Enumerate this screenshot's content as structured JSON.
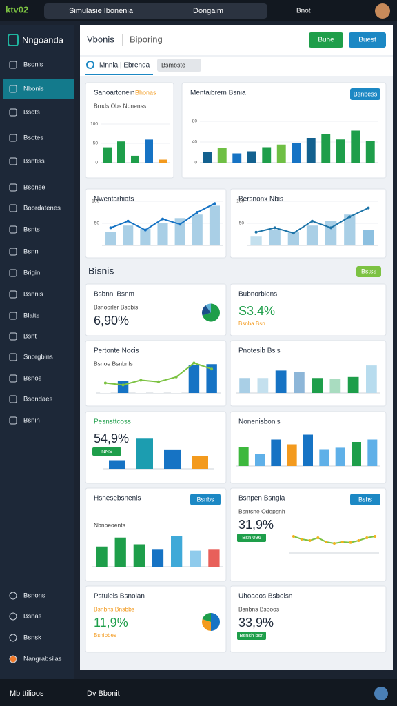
{
  "browser": {
    "logo": "ktv02",
    "tab": "Simulasie Ibonenia",
    "search": "Dongaim",
    "user": "Bnot"
  },
  "sidebar": {
    "title": "Nngoanda",
    "items": [
      "Bsonis",
      "Nbonis",
      "Bsots",
      "Bsotes",
      "Bsntiss",
      "Bsonse",
      "Boordatenes",
      "Bsnts",
      "Bsnn",
      "Brigin",
      "Bsnnis",
      "Blaits",
      "Bsnt",
      "Snorgbins",
      "Bsnos",
      "Bsondaes",
      "Bsnin"
    ],
    "footer": [
      "Bsnons",
      "Bsnas",
      "Bsnsk",
      "Nangrabsilas"
    ]
  },
  "header": {
    "title": "Vbonis",
    "subtitle": "Biporing",
    "button_1": "Buhe",
    "button_2": "Buest"
  },
  "tabs": {
    "active": "Mnnla | Ebrenda",
    "dropdown": "Bsmbste"
  },
  "section": {
    "title": "Bisnis",
    "button": "Bstss"
  },
  "widgets": [
    {
      "title": "Sanoartonein",
      "badge": "Bhonas",
      "sub": "Brnds Obs Nbnenss",
      "bars": [
        40,
        55,
        18,
        60,
        8
      ],
      "colors": [
        "#1e9e4a",
        "#1e9e4a",
        "#1e9e4a",
        "#1673c4",
        "#f39a1e"
      ],
      "ylim": [
        0,
        100
      ],
      "yticks": [
        0,
        50,
        100
      ]
    },
    {
      "title": "Mentaibrem Bsnia",
      "button": "Bsnbess",
      "bars": [
        20,
        28,
        18,
        22,
        30,
        35,
        38,
        48,
        55,
        45,
        62,
        42
      ],
      "colors": [
        "#13618f",
        "#6fbf44",
        "#1673c4",
        "#13618f",
        "#1e9e4a",
        "#6fbf44",
        "#1673c4",
        "#13618f",
        "#1e9e4a",
        "#1e9e4a",
        "#1e9e4a",
        "#1e9e4a"
      ],
      "ylim": [
        0,
        80
      ],
      "yticks": [
        0,
        40,
        80
      ]
    },
    {
      "title": "Nwentarhiats",
      "bars": [
        30,
        45,
        38,
        50,
        62,
        70,
        90
      ],
      "colors": [
        "#a9cfe6",
        "#a9cfe6",
        "#a9cfe6",
        "#a9cfe6",
        "#a9cfe6",
        "#a9cfe6",
        "#a9cfe6"
      ],
      "line": [
        40,
        55,
        35,
        60,
        48,
        75,
        95
      ],
      "line_color": "#1673c4",
      "ylim": [
        0,
        100
      ],
      "yticks": [
        50,
        100
      ]
    },
    {
      "title": "Bersnonx Nbis",
      "bars": [
        20,
        35,
        30,
        45,
        55,
        70,
        35
      ],
      "colors": [
        "#c4e0ee",
        "#a9cfe6",
        "#a9cfe6",
        "#a9cfe6",
        "#a9cfe6",
        "#a9cfe6",
        "#8dc0e0"
      ],
      "line": [
        30,
        40,
        28,
        55,
        40,
        65,
        85
      ],
      "line_color": "#1d74a8",
      "ylim": [
        0,
        100
      ],
      "yticks": [
        50,
        100
      ]
    },
    {
      "title": "Bsbnnl Bsnm",
      "sub": "Bsnoorler Bsobis",
      "kpi": "6,90%",
      "donut": [
        70,
        20,
        10
      ],
      "donut_colors": [
        "#1e9e4a",
        "#1b4e8a",
        "#5fb0d8"
      ]
    },
    {
      "title": "Bubnorbions",
      "kpi": "S3.4%",
      "kpi_color": "#1e9e4a",
      "sub2": "Bsnba Bsn"
    },
    {
      "title": "Pertonte Nocis",
      "sub": "Bsnoe Bsnbnls",
      "bars": [
        10,
        30,
        12,
        15,
        20,
        70,
        72
      ],
      "colors": [
        "#ffffff",
        "#1673c4",
        "#ffffff",
        "#ffffff",
        "#ffffff",
        "#1673c4",
        "#1673c4"
      ],
      "line": [
        25,
        20,
        32,
        28,
        40,
        75,
        60
      ],
      "line_color": "#7cc242",
      "ylim": [
        0,
        100
      ]
    },
    {
      "title": "Pnotesib Bsls",
      "bars": [
        30,
        30,
        45,
        42,
        30,
        28,
        32,
        55
      ],
      "colors": [
        "#a9cfe6",
        "#c4e0ee",
        "#1673c4",
        "#8db6d8",
        "#1e9e4a",
        "#a9dcc0",
        "#1e9e4a",
        "#b8dcee"
      ],
      "ylim": [
        0,
        80
      ]
    },
    {
      "title": "Pesnsttcoss",
      "title_color": "#1e9e4a",
      "kpi": "54,9%",
      "tag": "NNS",
      "bars": [
        20,
        70,
        45,
        30
      ],
      "colors": [
        "#1673c4",
        "#1c9db0",
        "#1673c4",
        "#f39a1e"
      ],
      "ylim": [
        0,
        80
      ]
    },
    {
      "title": "Nonenisbonis",
      "bars": [
        40,
        25,
        55,
        45,
        65,
        35,
        38,
        50,
        55
      ],
      "colors": [
        "#3db83d",
        "#5fb0e8",
        "#1673c4",
        "#f39a1e",
        "#1673c4",
        "#5fb0e8",
        "#5fb0e8",
        "#1e9e4a",
        "#5fb0e8"
      ],
      "ylim": [
        0,
        80
      ]
    },
    {
      "title": "Hsnesebsnenis",
      "button": "Bsnbs",
      "sub": "Nbnoeoents",
      "bars": [
        45,
        65,
        50,
        38,
        68,
        36,
        38
      ],
      "colors": [
        "#1e9e4a",
        "#1e9e4a",
        "#1e9e4a",
        "#1673c4",
        "#3fa9d8",
        "#8fcbec",
        "#e8605a"
      ],
      "ylim": [
        0,
        80
      ]
    },
    {
      "title": "Bsnpen Bsngia",
      "button": "Bshs",
      "sub": "Bsntsne Odepsnh",
      "kpi": "31,9%",
      "tag": "Bsn 096",
      "line": [
        60,
        50,
        45,
        55,
        40,
        35,
        40,
        38,
        45,
        55,
        60
      ],
      "line_color": "#7cc242",
      "ylim": [
        0,
        80
      ]
    },
    {
      "title": "Pstulels Bsnoian",
      "sub": "Bsnbns Bnsbbs",
      "sub_color": "#f39a1e",
      "kpi": "11,9%",
      "kpi_color": "#1e9e4a",
      "sub2": "Bsnibbes",
      "donut": [
        50,
        30,
        20
      ],
      "donut_colors": [
        "#1673c4",
        "#f39a1e",
        "#1e9e4a"
      ]
    },
    {
      "title": "Uhoaoos Bsbolsn",
      "sub": "Bsnbns Bsboos",
      "kpi": "33,9%",
      "tag": "Bsnsh bsn"
    }
  ],
  "bottom": {
    "left": "Mb ttilioos",
    "mid": "Dv Bbonit"
  }
}
